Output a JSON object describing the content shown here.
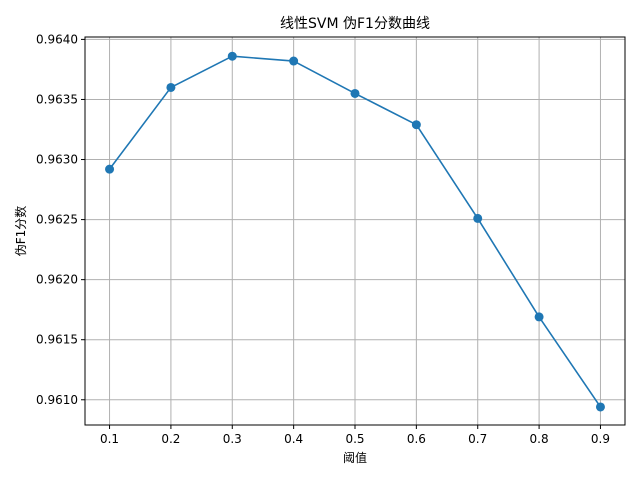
{
  "chart_data": {
    "type": "line",
    "title": "线性SVM 伪F1分数曲线",
    "xlabel": "阈值",
    "ylabel": "伪F1分数",
    "x": [
      0.1,
      0.2,
      0.3,
      0.4,
      0.5,
      0.6,
      0.7,
      0.8,
      0.9
    ],
    "series": [
      {
        "values": [
          0.96292,
          0.9636,
          0.96386,
          0.96382,
          0.96355,
          0.96329,
          0.96251,
          0.96169,
          0.96094
        ],
        "color": "#1f77b4",
        "marker": "circle"
      }
    ],
    "xticks": [
      "0.1",
      "0.2",
      "0.3",
      "0.4",
      "0.5",
      "0.6",
      "0.7",
      "0.8",
      "0.9"
    ],
    "yticks": [
      "0.9610",
      "0.9615",
      "0.9620",
      "0.9625",
      "0.9630",
      "0.9635",
      "0.9640"
    ],
    "xlim": [
      0.06,
      0.94
    ],
    "ylim": [
      0.96079,
      0.96402
    ],
    "grid": true
  }
}
